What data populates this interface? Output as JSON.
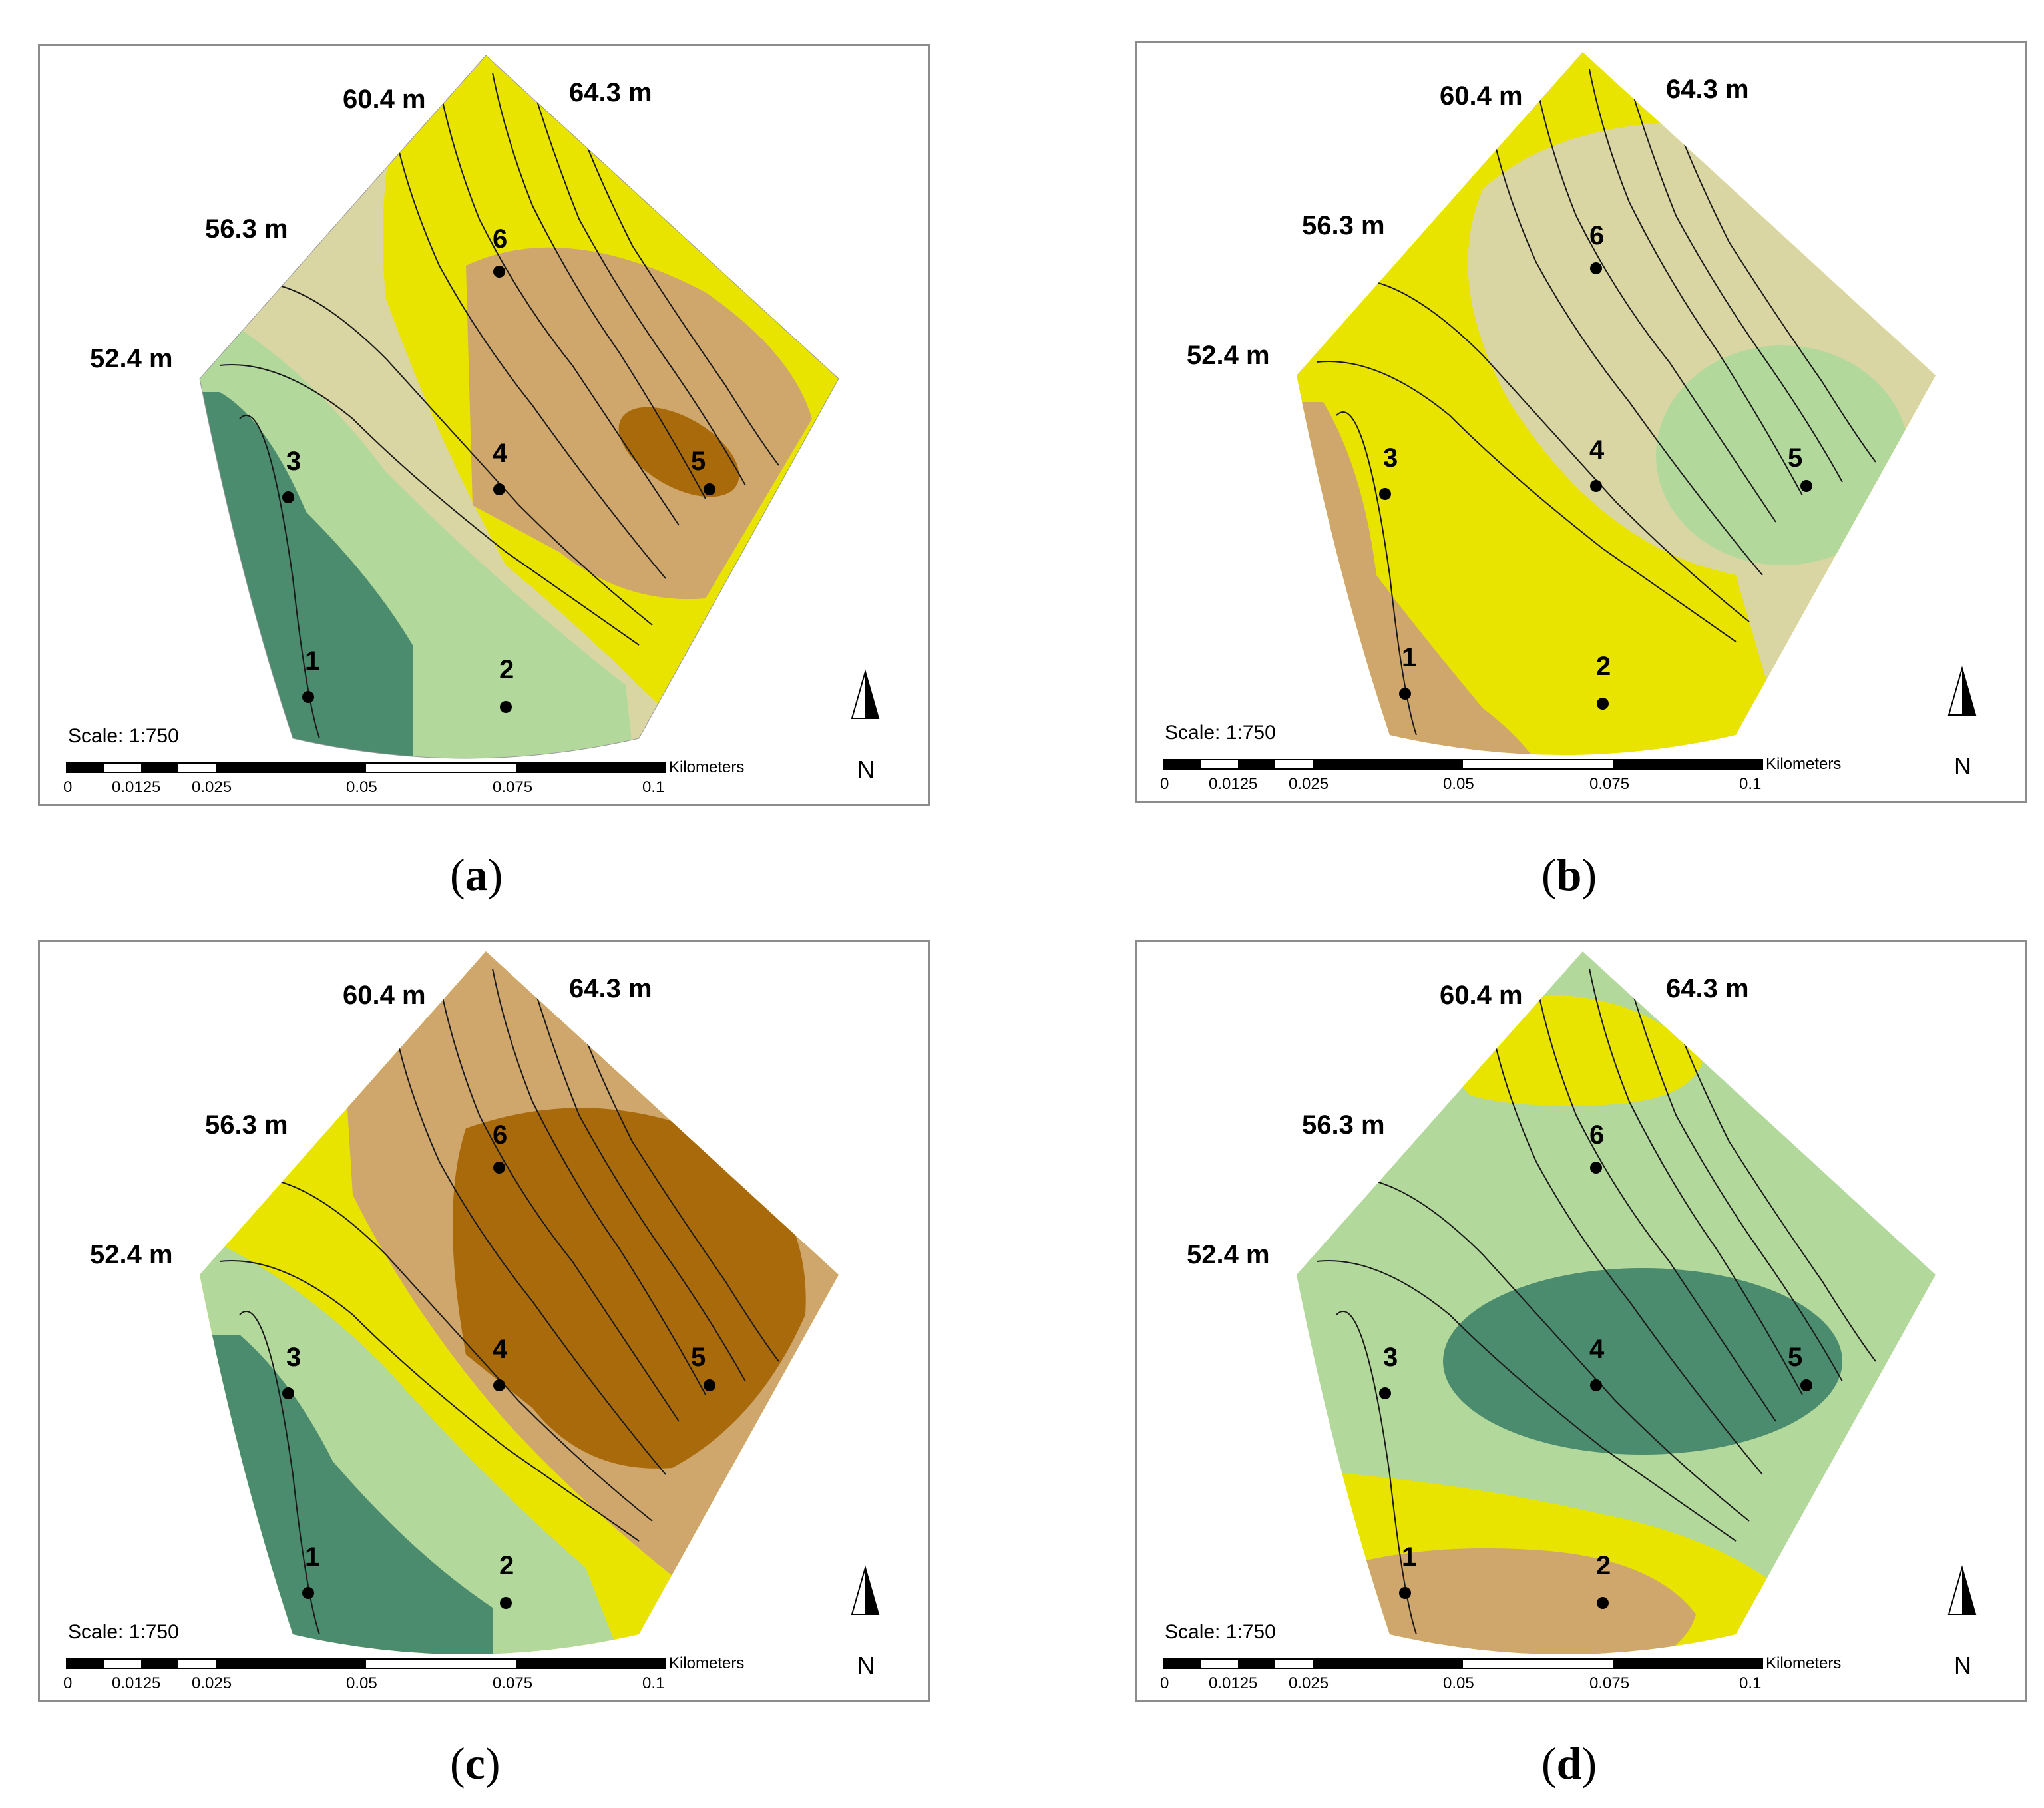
{
  "colors": {
    "dark_green": "#4b8b6e",
    "light_green": "#b3d89c",
    "beige": "#d9d6a3",
    "yellow": "#e9e300",
    "tan": "#cfa66b",
    "dark_brown": "#a86a0a",
    "contour": "#1a1a1a",
    "frame": "#8c8c8c"
  },
  "elevation_labels": [
    "60.4 m",
    "64.3 m",
    "56.3 m",
    "52.4 m"
  ],
  "point_labels": [
    "1",
    "2",
    "3",
    "4",
    "5",
    "6"
  ],
  "scale": {
    "text": "Scale: 1:750",
    "unit": "Kilometers",
    "ticks": [
      "0",
      "0.0125",
      "0.025",
      "0.05",
      "0.075",
      "0.1"
    ]
  },
  "north_label": "N",
  "panels": [
    {
      "id": "a",
      "caption": "a"
    },
    {
      "id": "b",
      "caption": "b"
    },
    {
      "id": "c",
      "caption": "c"
    },
    {
      "id": "d",
      "caption": "d"
    }
  ]
}
